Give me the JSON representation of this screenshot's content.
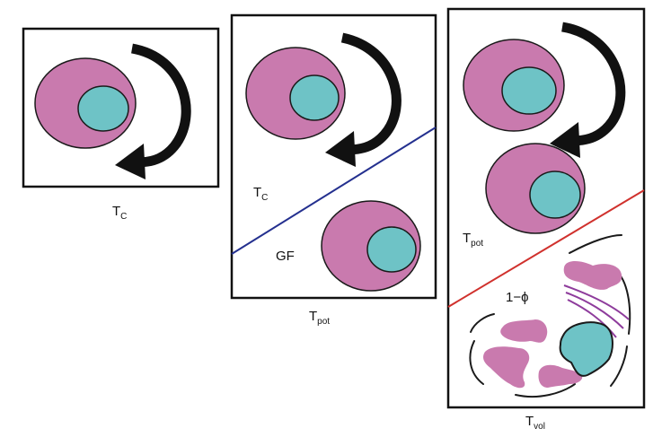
{
  "colors": {
    "cell_fill": "#c97aae",
    "cell_stroke": "#1a1a1a",
    "nucleus_fill": "#6ec3c6",
    "arrow": "#111111",
    "boundary_panel2": "#24308f",
    "boundary_panel3": "#d0312d",
    "membrane_fragment": "#1a1a1a",
    "spindle_lines": "#8e3c9c"
  },
  "icons": {
    "cycle_arrow": "curved-cycle-arrow-icon"
  },
  "panels": [
    {
      "caption_main": "T",
      "caption_sub": "C"
    },
    {
      "caption_main": "T",
      "caption_sub": "pot",
      "region_upper_main": "T",
      "region_upper_sub": "C",
      "region_lower": "GF"
    },
    {
      "caption_main": "T",
      "caption_sub": "vol",
      "region_upper_main": "T",
      "region_upper_sub": "pot",
      "region_lower": "1−ϕ"
    }
  ]
}
